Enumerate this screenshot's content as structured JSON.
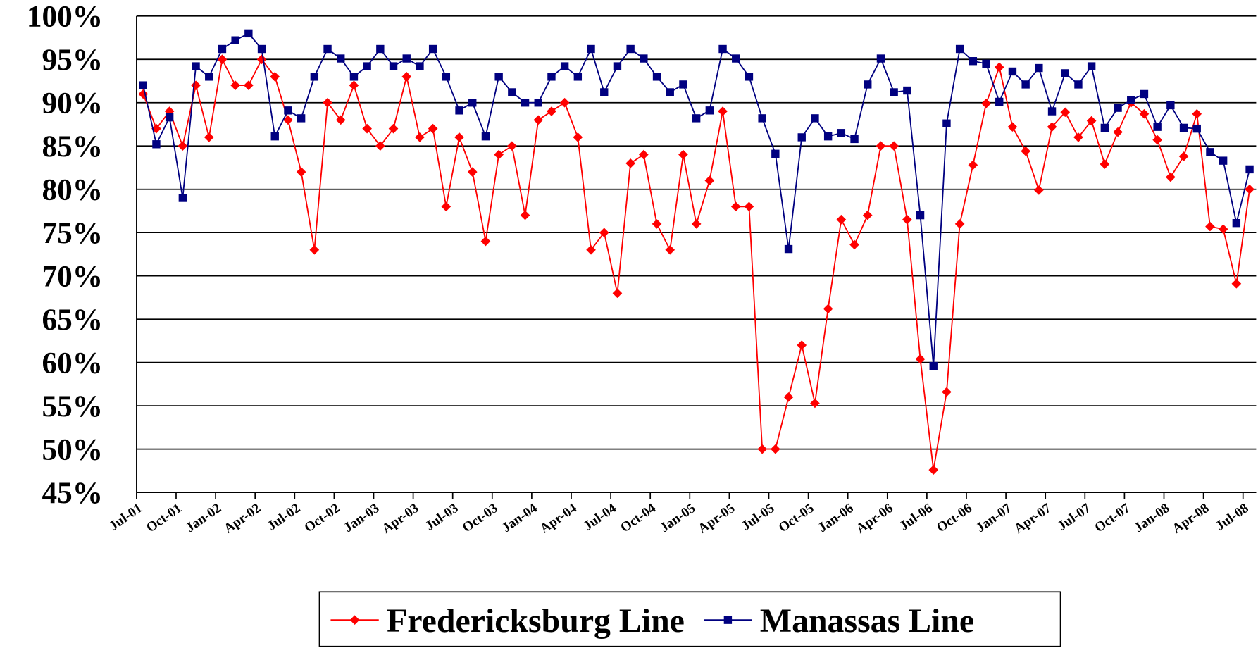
{
  "chart_data": {
    "type": "line",
    "categories": [
      "Jul-01",
      null,
      null,
      "Oct-01",
      null,
      null,
      "Jan-02",
      null,
      null,
      "Apr-02",
      null,
      null,
      "Jul-02",
      null,
      null,
      "Oct-02",
      null,
      null,
      "Jan-03",
      null,
      null,
      "Apr-03",
      null,
      null,
      "Jul-03",
      null,
      null,
      "Oct-03",
      null,
      null,
      "Jan-04",
      null,
      null,
      "Apr-04",
      null,
      null,
      "Jul-04",
      null,
      null,
      "Oct-04",
      null,
      null,
      "Jan-05",
      null,
      null,
      "Apr-05",
      null,
      null,
      "Jul-05",
      null,
      null,
      "Oct-05",
      null,
      null,
      "Jan-06",
      null,
      null,
      "Apr-06",
      null,
      null,
      "Jul-06",
      null,
      null,
      "Oct-06",
      null,
      null,
      "Jan-07",
      null,
      null,
      "Apr-07",
      null,
      null,
      "Jul-07",
      null,
      null,
      "Oct-07",
      null,
      null,
      "Jan-08",
      null,
      null,
      "Apr-08",
      null,
      null,
      "Jul-08"
    ],
    "series": [
      {
        "name": "Fredericksburg Line",
        "color": "#ff0000",
        "marker": "diamond",
        "values": [
          91,
          87,
          89,
          85,
          92,
          86,
          95,
          92,
          92,
          95,
          93,
          88,
          82,
          73,
          90,
          88,
          92,
          87,
          85,
          87,
          93,
          86,
          87,
          78,
          86,
          82,
          74,
          84,
          85,
          77,
          88,
          89,
          90,
          86,
          73,
          75,
          68,
          83,
          84,
          76,
          73,
          84,
          76,
          81,
          89,
          78,
          78,
          50,
          50,
          56,
          62,
          55.3,
          66.2,
          76.5,
          73.6,
          77,
          85,
          85,
          76.5,
          60.4,
          47.6,
          56.6,
          76,
          82.8,
          89.9,
          94.1,
          87.2,
          84.4,
          79.9,
          87.2,
          88.9,
          86,
          87.9,
          82.9,
          86.6,
          90,
          88.7,
          85.7,
          81.4,
          83.8,
          88.7,
          75.7,
          75.4,
          69.1,
          80
        ]
      },
      {
        "name": "Manassas Line",
        "color": "#000080",
        "marker": "square",
        "values": [
          92,
          85.2,
          88.3,
          79,
          94.2,
          93,
          96.2,
          97.2,
          98,
          96.2,
          86.1,
          89.1,
          88.2,
          93,
          96.2,
          95.1,
          93,
          94.2,
          96.2,
          94.2,
          95.1,
          94.2,
          96.2,
          93,
          89.1,
          90,
          86.1,
          93,
          91.2,
          90,
          90,
          93,
          94.2,
          93,
          96.2,
          91.2,
          94.2,
          96.2,
          95.1,
          93,
          91.2,
          92.1,
          88.2,
          89.1,
          96.2,
          95.1,
          93,
          88.2,
          84.1,
          73.1,
          86,
          88.2,
          86.1,
          86.5,
          85.8,
          92.1,
          95.1,
          91.2,
          91.4,
          77,
          59.6,
          87.6,
          96.2,
          94.8,
          94.5,
          90.1,
          93.6,
          92.1,
          94,
          89,
          93.4,
          92.1,
          94.2,
          87.1,
          89.4,
          90.3,
          91,
          87.2,
          89.7,
          87.1,
          87,
          84.3,
          83.3,
          76.1,
          82.3
        ]
      }
    ],
    "ylim": [
      45,
      100
    ],
    "yticks": [
      {
        "value": 45,
        "label": "45%"
      },
      {
        "value": 50,
        "label": "50%"
      },
      {
        "value": 55,
        "label": "55%"
      },
      {
        "value": 60,
        "label": "60%"
      },
      {
        "value": 65,
        "label": "65%"
      },
      {
        "value": 70,
        "label": "70%"
      },
      {
        "value": 75,
        "label": "75%"
      },
      {
        "value": 80,
        "label": "80%"
      },
      {
        "value": 85,
        "label": "85%"
      },
      {
        "value": 90,
        "label": "90%"
      },
      {
        "value": 95,
        "label": "95%"
      },
      {
        "value": 100,
        "label": "100%"
      }
    ],
    "grid": true,
    "legend": "bottom"
  }
}
